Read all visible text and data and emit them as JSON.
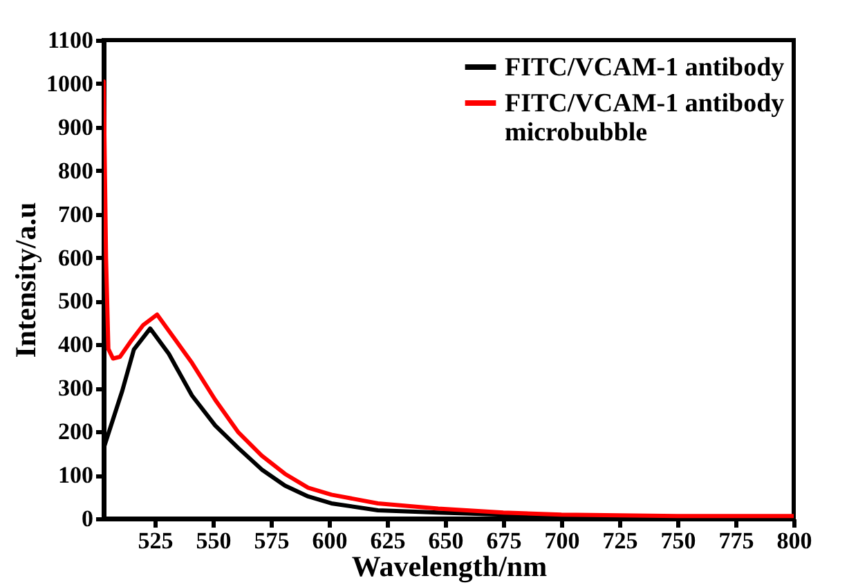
{
  "chart_data": {
    "type": "line",
    "xlabel": "Wavelength/nm",
    "ylabel": "Intensity/a.u",
    "xlim": [
      503,
      800
    ],
    "xticks": [
      525,
      550,
      575,
      600,
      625,
      650,
      675,
      700,
      725,
      750,
      775,
      800
    ],
    "ylim": [
      0,
      1100
    ],
    "yticks": [
      0,
      100,
      200,
      300,
      400,
      500,
      600,
      700,
      800,
      900,
      1000,
      1100
    ],
    "grid": false,
    "legend": "top right",
    "marker": "none",
    "line_style": "solid",
    "series": [
      {
        "name": "FITC/VCAM-1 antibody",
        "color": "#000000",
        "x": [
          503,
          511,
          516,
          523,
          531,
          541,
          551,
          561,
          571,
          581,
          591,
          601,
          621,
          647,
          675,
          700,
          750,
          800
        ],
        "values": [
          162,
          294,
          389,
          437,
          379,
          283,
          214,
          162,
          113,
          76,
          51,
          35,
          19,
          14,
          9,
          5,
          3,
          3
        ]
      },
      {
        "name": "FITC/VCAM-1 antibody microbubble",
        "color": "#ff0000",
        "x": [
          503,
          504,
          505,
          507,
          510,
          515,
          520,
          526,
          531,
          541,
          551,
          561,
          571,
          581,
          591,
          601,
          621,
          647,
          675,
          700,
          750,
          800
        ],
        "values": [
          1005,
          600,
          390,
          368,
          372,
          410,
          445,
          469,
          432,
          358,
          273,
          198,
          145,
          103,
          71,
          55,
          35,
          23,
          14,
          9,
          6,
          6
        ]
      }
    ]
  }
}
